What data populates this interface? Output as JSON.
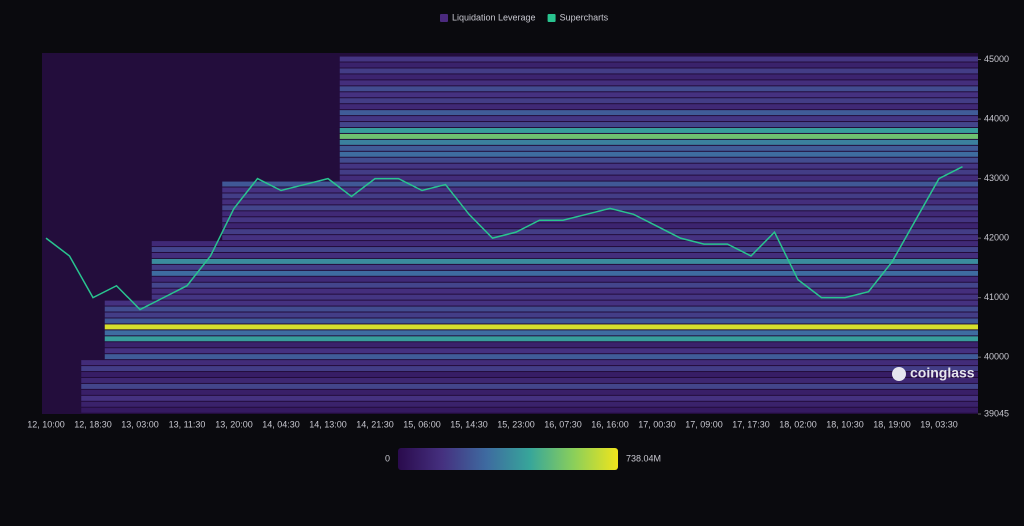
{
  "chart_data": {
    "type": "heatmap",
    "series": [
      {
        "name": "Liquidation Leverage",
        "color": "#4b2a7e"
      },
      {
        "name": "Supercharts",
        "color": "#29c48f",
        "values": [
          42000,
          41700,
          41000,
          41200,
          40800,
          41000,
          41200,
          41700,
          42500,
          43000,
          42800,
          42900,
          43000,
          42700,
          43000,
          43000,
          42800,
          42900,
          42400,
          42000,
          42100,
          42300,
          42300,
          42400,
          42500,
          42400,
          42200,
          42000,
          41900,
          41900,
          41700,
          42100,
          41300,
          41000,
          41000,
          41100,
          41600,
          42300,
          43000,
          43200
        ]
      }
    ],
    "categories": [
      "12, 10:00",
      null,
      "12, 18:30",
      null,
      "13, 03:00",
      null,
      "13, 11:30",
      null,
      "13, 20:00",
      null,
      "14, 04:30",
      null,
      "14, 13:00",
      null,
      "14, 21:30",
      null,
      "15, 06:00",
      null,
      "15, 14:30",
      null,
      "15, 23:00",
      null,
      "16, 07:30",
      null,
      "16, 16:00",
      null,
      "17, 00:30",
      null,
      "17, 09:00",
      null,
      "17, 17:30",
      null,
      "18, 02:00",
      null,
      "18, 10:30",
      null,
      "18, 19:00",
      null,
      "19, 03:30",
      null
    ],
    "bands": {
      "levels": [
        39100,
        39200,
        39300,
        39400,
        39500,
        39600,
        39700,
        39800,
        39900,
        40000,
        40100,
        40200,
        40300,
        40400,
        40500,
        40600,
        40700,
        40800,
        40900,
        41000,
        41100,
        41200,
        41300,
        41400,
        41500,
        41600,
        41700,
        41800,
        41900,
        42000,
        42100,
        42200,
        42300,
        42400,
        42500,
        42600,
        42700,
        42800,
        42900,
        43000,
        43100,
        43200,
        43300,
        43400,
        43500,
        43600,
        43700,
        43800,
        43900,
        44000,
        44100,
        44200,
        44300,
        44400,
        44500,
        44600,
        44700,
        44800,
        44900,
        45000
      ],
      "starts": [
        2,
        2,
        2,
        2,
        2,
        2,
        2,
        2,
        2,
        3,
        3,
        3,
        3,
        3,
        3,
        3,
        3,
        3,
        3,
        5,
        5,
        5,
        5,
        5,
        5,
        5,
        5,
        5,
        5,
        8,
        8,
        8,
        8,
        8,
        8,
        8,
        8,
        8,
        8,
        13,
        13,
        13,
        13,
        13,
        13,
        13,
        13,
        13,
        13,
        13,
        13,
        13,
        13,
        13,
        13,
        13,
        13,
        13,
        13,
        13
      ],
      "values": [
        60,
        90,
        150,
        80,
        200,
        110,
        70,
        180,
        130,
        260,
        150,
        90,
        420,
        300,
        700,
        250,
        180,
        220,
        150,
        160,
        140,
        200,
        120,
        300,
        180,
        380,
        140,
        200,
        120,
        150,
        180,
        100,
        160,
        120,
        200,
        140,
        180,
        150,
        250,
        130,
        180,
        160,
        220,
        300,
        260,
        350,
        540,
        420,
        200,
        160,
        260,
        120,
        180,
        150,
        220,
        140,
        100,
        180,
        90,
        160
      ]
    },
    "ylim": [
      39045,
      45110
    ],
    "yticks": [
      39045,
      40000,
      41000,
      42000,
      43000,
      44000,
      45000
    ],
    "clim": [
      0,
      738.04
    ],
    "cticks": [
      0,
      {
        "value": 738.04,
        "label": "738.04M"
      }
    ],
    "colorscale": [
      "#2a0b4d",
      "#45307f",
      "#3e6aa0",
      "#37a69a",
      "#8bcf5a",
      "#f0e51c"
    ],
    "background": "#230d3c",
    "watermark": "coinglass"
  }
}
